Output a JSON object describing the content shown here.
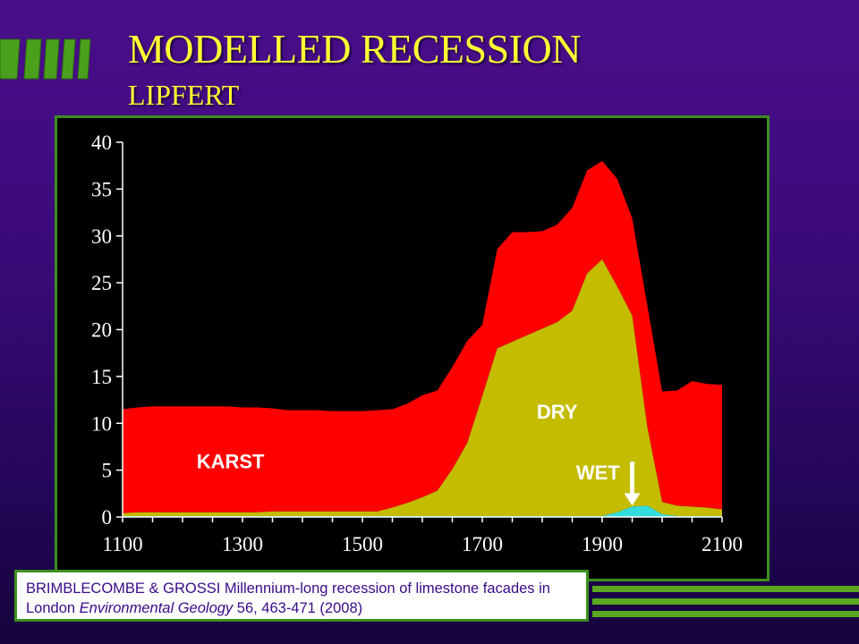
{
  "slide": {
    "title": "MODELLED RECESSION",
    "subtitle": "LIPFERT",
    "reference": {
      "authors_title": "BRIMBLECOMBE & GROSSI Millennium-long recession of limestone facades in London",
      "journal": "Environmental Geology",
      "citation": "56, 463-471 (2008)"
    }
  },
  "colors": {
    "background": "#3a0a78",
    "title": "#ffff33",
    "frame_green": "#3e8e1e",
    "karst": "#ff0000",
    "dry": "#c4bc00",
    "wet": "#33dddd",
    "reference_text": "#3a0a8a"
  },
  "chart_data": {
    "type": "area",
    "stacked": true,
    "title": "",
    "xlabel": "",
    "ylabel": "",
    "xlim": [
      1100,
      2100
    ],
    "ylim": [
      0,
      40
    ],
    "x_ticks": [
      "1100",
      "1300",
      "1500",
      "1700",
      "1900",
      "2100"
    ],
    "y_ticks": [
      "0",
      "5",
      "10",
      "15",
      "20",
      "25",
      "30",
      "35",
      "40"
    ],
    "grid": false,
    "legend": "none",
    "x": [
      1100,
      1125,
      1150,
      1175,
      1200,
      1225,
      1250,
      1275,
      1300,
      1325,
      1350,
      1375,
      1400,
      1425,
      1450,
      1475,
      1500,
      1525,
      1550,
      1575,
      1600,
      1625,
      1650,
      1675,
      1700,
      1725,
      1750,
      1775,
      1800,
      1825,
      1850,
      1875,
      1900,
      1925,
      1950,
      1975,
      2000,
      2025,
      2050,
      2075,
      2100
    ],
    "series": [
      {
        "name": "WET",
        "values": [
          0.1,
          0.1,
          0.1,
          0.1,
          0.1,
          0.1,
          0.1,
          0.1,
          0.1,
          0.1,
          0.1,
          0.1,
          0.1,
          0.1,
          0.1,
          0.1,
          0.1,
          0.1,
          0.1,
          0.1,
          0.1,
          0.1,
          0.1,
          0.1,
          0.1,
          0.1,
          0.1,
          0.1,
          0.1,
          0.1,
          0.1,
          0.1,
          0.1,
          0.5,
          1.1,
          1.2,
          0.3,
          0.1,
          0.1,
          0.1,
          0.1
        ],
        "color": "#33dddd"
      },
      {
        "name": "DRY",
        "values": [
          0.3,
          0.4,
          0.4,
          0.4,
          0.4,
          0.4,
          0.4,
          0.4,
          0.4,
          0.4,
          0.5,
          0.5,
          0.5,
          0.5,
          0.5,
          0.5,
          0.5,
          0.5,
          0.9,
          1.4,
          2.0,
          2.7,
          5.0,
          7.8,
          12.8,
          17.9,
          18.6,
          19.3,
          20.0,
          20.7,
          21.9,
          25.9,
          27.4,
          24.1,
          20.4,
          8.5,
          1.3,
          1.1,
          1.0,
          0.9,
          0.7
        ],
        "color": "#c4bc00"
      },
      {
        "name": "KARST",
        "values": [
          11.1,
          11.2,
          11.3,
          11.3,
          11.3,
          11.3,
          11.3,
          11.3,
          11.2,
          11.2,
          11.0,
          10.8,
          10.8,
          10.8,
          10.7,
          10.7,
          10.7,
          10.8,
          10.5,
          10.6,
          10.9,
          10.7,
          10.9,
          10.9,
          7.6,
          10.6,
          11.7,
          11.0,
          10.4,
          10.4,
          11.0,
          11.0,
          10.5,
          11.5,
          10.4,
          13.0,
          11.8,
          12.3,
          13.4,
          13.2,
          13.3
        ],
        "color": "#ff0000"
      }
    ],
    "annotations": [
      {
        "text": "KARST",
        "x": 1280,
        "y": 5.2
      },
      {
        "text": "DRY",
        "x": 1825,
        "y": 10.5
      },
      {
        "text": "WET",
        "x": 1893,
        "y": 4.0
      },
      {
        "type": "arrow",
        "x": 1950,
        "y_from": 5.9,
        "y_to": 1.2
      }
    ]
  }
}
